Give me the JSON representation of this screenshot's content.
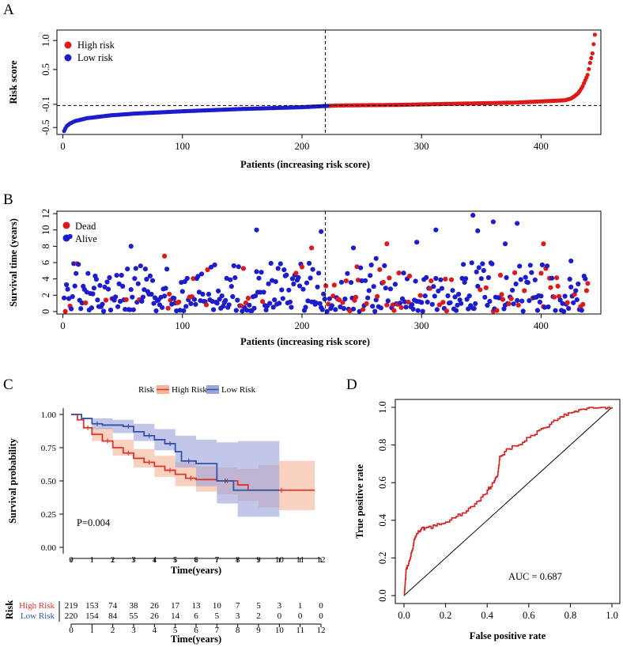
{
  "panels": {
    "a": "A",
    "b": "B",
    "c": "C",
    "d": "D"
  },
  "colors": {
    "high": "#dc1a1a",
    "low": "#1c1ccc",
    "km_high": "#e0332c",
    "km_low": "#3353a5",
    "ci_high": "#f4b49a",
    "ci_low": "#9da3dc",
    "roc": "#d21f1f"
  },
  "chart_data": [
    {
      "id": "risk_score",
      "type": "scatter",
      "ylabel": "Risk score",
      "xlabel": "Patients (increasing risk score)",
      "xlim": [
        -5,
        450
      ],
      "ylim": [
        -0.62,
        1.18
      ],
      "xticks": [
        0,
        100,
        200,
        300,
        400
      ],
      "yticks": [
        -0.5,
        -0.1,
        0.5,
        1.0
      ],
      "ytick_labels": [
        "-0.5",
        "-0.1",
        "0.5",
        "1.0"
      ],
      "cutoff_index": 219.5,
      "cutoff_score": -0.12,
      "n_low": 220,
      "n_high": 219,
      "legend": [
        "High risk",
        "Low risk"
      ],
      "curve_points_index_score": [
        [
          1,
          -0.56
        ],
        [
          3,
          -0.48
        ],
        [
          6,
          -0.43
        ],
        [
          10,
          -0.39
        ],
        [
          20,
          -0.34
        ],
        [
          40,
          -0.29
        ],
        [
          60,
          -0.26
        ],
        [
          100,
          -0.22
        ],
        [
          150,
          -0.18
        ],
        [
          200,
          -0.15
        ],
        [
          219,
          -0.13
        ],
        [
          230,
          -0.12
        ],
        [
          280,
          -0.11
        ],
        [
          330,
          -0.09
        ],
        [
          380,
          -0.07
        ],
        [
          410,
          -0.04
        ],
        [
          420,
          -0.03
        ],
        [
          425,
          0.0
        ],
        [
          428,
          0.04
        ],
        [
          431,
          0.09
        ],
        [
          433,
          0.15
        ],
        [
          435,
          0.22
        ],
        [
          437,
          0.32
        ],
        [
          439,
          0.41
        ],
        [
          441,
          0.62
        ],
        [
          443,
          0.78
        ],
        [
          445,
          1.1
        ]
      ]
    },
    {
      "id": "survival_time",
      "type": "scatter",
      "ylabel": "Survival time (years)",
      "xlabel": "Patients (increasing risk score)",
      "xlim": [
        -5,
        450
      ],
      "ylim": [
        -0.3,
        12.3
      ],
      "xticks": [
        0,
        100,
        200,
        300,
        400
      ],
      "yticks": [
        0,
        2,
        4,
        6,
        8,
        10,
        12
      ],
      "cutoff_index": 219.5,
      "legend": [
        "Dead",
        "Alive"
      ],
      "n_points": 439,
      "highlighted_points": {
        "alive": [
          [
            6,
            9.2
          ],
          [
            57,
            8.0
          ],
          [
            162,
            10.0
          ],
          [
            216,
            9.8
          ],
          [
            243,
            7.8
          ],
          [
            262,
            6.5
          ],
          [
            296,
            8.5
          ],
          [
            312,
            10.0
          ],
          [
            343,
            11.8
          ],
          [
            347,
            9.9
          ],
          [
            360,
            11.0
          ],
          [
            380,
            10.8
          ],
          [
            370,
            8.3
          ],
          [
            425,
            6.2
          ]
        ],
        "dead": [
          [
            85,
            6.8
          ],
          [
            208,
            7.8
          ],
          [
            271,
            8.3
          ],
          [
            402,
            8.3
          ],
          [
            400,
            4.7
          ]
        ]
      }
    },
    {
      "id": "kaplan_meier",
      "type": "line",
      "title": "Risk",
      "legend": [
        "High Risk",
        "Low Risk"
      ],
      "xlabel": "Time(years)",
      "ylabel": "Survival probability",
      "xlim": [
        0,
        12
      ],
      "ylim": [
        0,
        1.0
      ],
      "xticks": [
        0,
        1,
        2,
        3,
        4,
        5,
        6,
        7,
        8,
        9,
        10,
        11,
        12
      ],
      "yticks": [
        "0.00",
        "0.25",
        "0.50",
        "0.75",
        "1.00"
      ],
      "annotation": "P=0.004",
      "series": [
        {
          "name": "High Risk",
          "steps": [
            [
              0,
              1.0
            ],
            [
              0.3,
              0.96
            ],
            [
              0.6,
              0.9
            ],
            [
              1.0,
              0.85
            ],
            [
              1.5,
              0.8
            ],
            [
              2.0,
              0.75
            ],
            [
              2.5,
              0.71
            ],
            [
              3.0,
              0.67
            ],
            [
              3.5,
              0.64
            ],
            [
              4.0,
              0.61
            ],
            [
              4.5,
              0.58
            ],
            [
              5.0,
              0.55
            ],
            [
              5.5,
              0.52
            ],
            [
              6.0,
              0.51
            ],
            [
              7.0,
              0.5
            ],
            [
              8.0,
              0.47
            ],
            [
              8.5,
              0.43
            ],
            [
              11.7,
              0.43
            ]
          ],
          "ci_upper": [
            [
              0,
              1.0
            ],
            [
              1,
              0.9
            ],
            [
              2,
              0.81
            ],
            [
              3,
              0.74
            ],
            [
              4,
              0.69
            ],
            [
              5,
              0.64
            ],
            [
              6,
              0.61
            ],
            [
              7,
              0.6
            ],
            [
              8,
              0.59
            ],
            [
              9,
              0.62
            ],
            [
              10,
              0.65
            ],
            [
              11.7,
              0.65
            ]
          ],
          "ci_lower": [
            [
              0,
              1.0
            ],
            [
              1,
              0.8
            ],
            [
              2,
              0.69
            ],
            [
              3,
              0.6
            ],
            [
              4,
              0.53
            ],
            [
              5,
              0.46
            ],
            [
              6,
              0.42
            ],
            [
              7,
              0.4
            ],
            [
              8,
              0.35
            ],
            [
              9,
              0.3
            ],
            [
              10,
              0.28
            ],
            [
              11.7,
              0.28
            ]
          ]
        },
        {
          "name": "Low Risk",
          "steps": [
            [
              0,
              1.0
            ],
            [
              0.5,
              0.97
            ],
            [
              1.0,
              0.93
            ],
            [
              1.5,
              0.92
            ],
            [
              2.5,
              0.91
            ],
            [
              3.0,
              0.87
            ],
            [
              3.5,
              0.84
            ],
            [
              4.0,
              0.81
            ],
            [
              4.5,
              0.78
            ],
            [
              5.0,
              0.72
            ],
            [
              5.3,
              0.65
            ],
            [
              6.0,
              0.63
            ],
            [
              7.0,
              0.5
            ],
            [
              7.8,
              0.43
            ],
            [
              10.0,
              0.43
            ]
          ],
          "ci_upper": [
            [
              0,
              1.0
            ],
            [
              1,
              0.97
            ],
            [
              2,
              0.96
            ],
            [
              3,
              0.93
            ],
            [
              4,
              0.89
            ],
            [
              5,
              0.84
            ],
            [
              6,
              0.81
            ],
            [
              7,
              0.79
            ],
            [
              8,
              0.8
            ],
            [
              10,
              0.8
            ]
          ],
          "ci_lower": [
            [
              0,
              1.0
            ],
            [
              1,
              0.89
            ],
            [
              2,
              0.86
            ],
            [
              3,
              0.8
            ],
            [
              4,
              0.73
            ],
            [
              5,
              0.6
            ],
            [
              6,
              0.46
            ],
            [
              7,
              0.33
            ],
            [
              8,
              0.23
            ],
            [
              10,
              0.23
            ]
          ]
        }
      ],
      "risk_table": {
        "label": "Risk",
        "xlabel": "Time(years)",
        "rows": [
          {
            "name": "High Risk",
            "values": [
              "219",
              "153",
              "74",
              "38",
              "26",
              "17",
              "13",
              "10",
              "7",
              "5",
              "3",
              "1",
              "0"
            ]
          },
          {
            "name": "Low Risk",
            "values": [
              "220",
              "154",
              "84",
              "55",
              "26",
              "14",
              "6",
              "5",
              "3",
              "2",
              "0",
              "0",
              "0"
            ]
          }
        ]
      }
    },
    {
      "id": "roc",
      "type": "line",
      "xlabel": "False positive rate",
      "ylabel": "True positive rate",
      "xlim": [
        0,
        1
      ],
      "ylim": [
        0,
        1
      ],
      "xticks": [
        "0.0",
        "0.2",
        "0.4",
        "0.6",
        "0.8",
        "1.0"
      ],
      "yticks": [
        "0.0",
        "0.2",
        "0.4",
        "0.6",
        "0.8",
        "1.0"
      ],
      "annotation": "AUC =  0.687",
      "series": [
        {
          "name": "ROC",
          "points": [
            [
              0,
              0
            ],
            [
              0.005,
              0.06
            ],
            [
              0.01,
              0.14
            ],
            [
              0.02,
              0.16
            ],
            [
              0.03,
              0.2
            ],
            [
              0.04,
              0.24
            ],
            [
              0.05,
              0.3
            ],
            [
              0.06,
              0.33
            ],
            [
              0.08,
              0.35
            ],
            [
              0.1,
              0.36
            ],
            [
              0.15,
              0.37
            ],
            [
              0.2,
              0.39
            ],
            [
              0.25,
              0.42
            ],
            [
              0.3,
              0.45
            ],
            [
              0.35,
              0.5
            ],
            [
              0.4,
              0.56
            ],
            [
              0.43,
              0.6
            ],
            [
              0.45,
              0.64
            ],
            [
              0.46,
              0.74
            ],
            [
              0.5,
              0.78
            ],
            [
              0.55,
              0.8
            ],
            [
              0.6,
              0.84
            ],
            [
              0.65,
              0.88
            ],
            [
              0.7,
              0.91
            ],
            [
              0.75,
              0.95
            ],
            [
              0.8,
              0.97
            ],
            [
              0.85,
              0.99
            ],
            [
              0.9,
              1.0
            ],
            [
              0.95,
              1.0
            ],
            [
              1.0,
              1.0
            ]
          ]
        }
      ]
    }
  ]
}
